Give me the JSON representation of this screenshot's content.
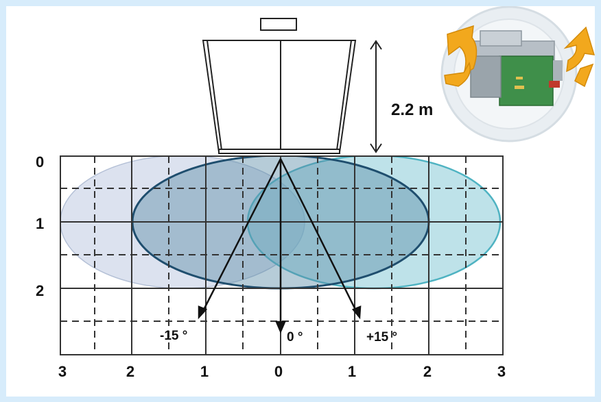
{
  "diagram": {
    "height_label": "2.2 m",
    "depth_labels": [
      "0",
      "1",
      "2"
    ],
    "width_labels": [
      "3",
      "2",
      "1",
      "0",
      "1",
      "2",
      "3"
    ],
    "angle_labels": {
      "left": "-15 °",
      "center": "0 °",
      "right": "+15 °"
    },
    "colors": {
      "left_zone": "#c9d3e6",
      "center_zone": "#6e9bb3",
      "right_zone": "#7ec6d3",
      "center_outline": "#1f4e6e",
      "right_outline": "#4fb3c2",
      "grid": "#333333",
      "rotation_arrow": "#f2a81d",
      "background": "#d7ecfb"
    },
    "icons": [
      "sensor-head-icon",
      "rotating-sensor-module-icon",
      "rotation-arrow-icon"
    ]
  }
}
